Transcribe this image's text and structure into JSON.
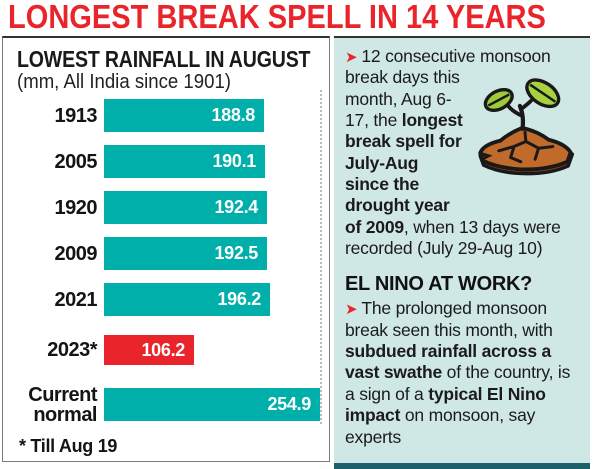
{
  "header": {
    "title": "LONGEST BREAK SPELL IN 14 YEARS"
  },
  "chart": {
    "title": "LOWEST RAINFALL IN AUGUST",
    "subtitle": "(mm, All India since 1901)",
    "footnote": "* Till Aug 19"
  },
  "chart_data": {
    "type": "bar",
    "orientation": "horizontal",
    "title": "LOWEST RAINFALL IN AUGUST",
    "unit": "mm, All India since 1901",
    "categories": [
      "1913",
      "2005",
      "1920",
      "2009",
      "2021",
      "2023*",
      "Current normal"
    ],
    "values": [
      188.8,
      190.1,
      192.4,
      192.5,
      196.2,
      106.2,
      254.9
    ],
    "highlight_index": 5,
    "bar_color": "#00aeaa",
    "highlight_color": "#e9252b",
    "value_label_color": "#ffffff",
    "axis_max": 254.9,
    "grid": false,
    "note": "* Till Aug 19"
  },
  "panel": {
    "bullet": "➤",
    "para1": {
      "segments": [
        {
          "text": "12 consecutive monsoon ",
          "bold": false
        },
        {
          "text": "break days this month, Aug 6-17, the ",
          "bold": false
        },
        {
          "text": "longest break spell for July-Aug since the drought year of 2009",
          "bold": true
        },
        {
          "text": ", when 13 days were recorded (July 29-Aug 10)",
          "bold": false
        }
      ]
    },
    "heading": "EL NINO AT WORK?",
    "para2": {
      "segments": [
        {
          "text": "The prolonged monsoon break seen this month, with ",
          "bold": false
        },
        {
          "text": "subdued rainfall across a vast swathe",
          "bold": true
        },
        {
          "text": " of the country, is a sign of a ",
          "bold": false
        },
        {
          "text": "typical El Nino impact",
          "bold": true
        },
        {
          "text": " on monsoon, say experts",
          "bold": false
        }
      ]
    }
  },
  "icons": {
    "sprout": "sprout-in-cracked-soil"
  },
  "colors": {
    "headline_red": "#e9252b",
    "bar_teal": "#00aeaa",
    "bar_red": "#e9252b",
    "panel_background": "#cfe8e5",
    "bottom_strip_teal": "#1c6169",
    "leaf_green": "#9fcb3b",
    "soil_brown": "#c06a2b"
  }
}
